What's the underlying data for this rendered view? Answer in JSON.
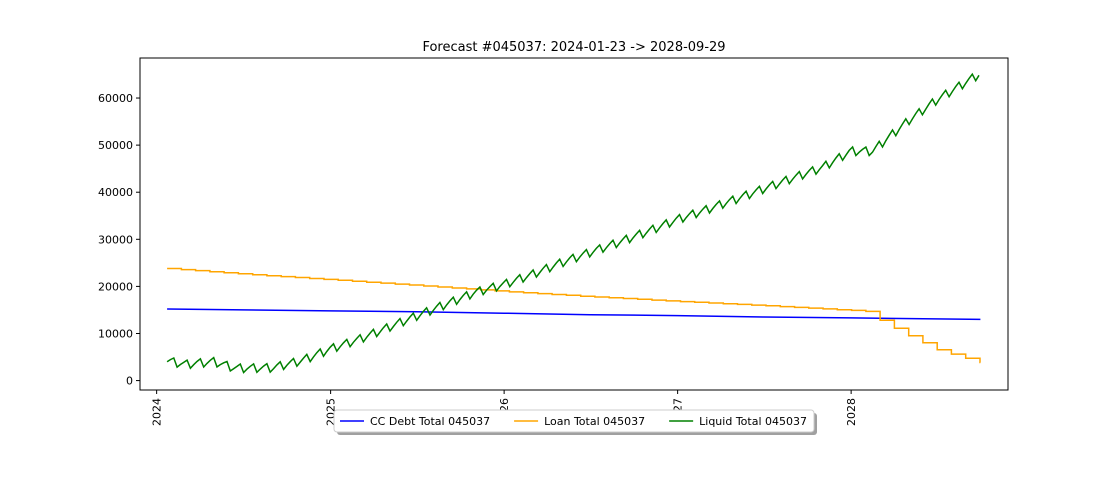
{
  "chart_data": {
    "type": "line",
    "title": "Forecast #045037: 2024-01-23 -> 2028-09-29",
    "xlabel": "",
    "ylabel": "",
    "x_ticks": [
      {
        "date": "2024-01-01",
        "label": "2024"
      },
      {
        "date": "2025-01-01",
        "label": "2025"
      },
      {
        "date": "2026-01-01",
        "label": "2026"
      },
      {
        "date": "2027-01-01",
        "label": "2027"
      },
      {
        "date": "2028-01-01",
        "label": "2028"
      }
    ],
    "y_ticks": [
      0,
      10000,
      20000,
      30000,
      40000,
      50000,
      60000
    ],
    "ylim": [
      -2000,
      68500
    ],
    "xlim": [
      "2023-11-27",
      "2028-11-26"
    ],
    "grid": false,
    "legend_position": "bottom-center",
    "series": [
      {
        "name": "CC Debt Total 045037",
        "color": "#0000ff",
        "style": "smooth",
        "points": [
          {
            "x": "2024-01-23",
            "y": 15200
          },
          {
            "x": "2024-07-01",
            "y": 15000
          },
          {
            "x": "2025-01-01",
            "y": 14800
          },
          {
            "x": "2025-07-01",
            "y": 14600
          },
          {
            "x": "2026-01-01",
            "y": 14300
          },
          {
            "x": "2026-07-01",
            "y": 14000
          },
          {
            "x": "2027-01-01",
            "y": 13800
          },
          {
            "x": "2027-07-01",
            "y": 13500
          },
          {
            "x": "2028-01-01",
            "y": 13300
          },
          {
            "x": "2028-09-29",
            "y": 13000
          }
        ]
      },
      {
        "name": "Loan Total 045037",
        "color": "#ffa500",
        "style": "step",
        "points": [
          {
            "x": "2024-01-23",
            "y": 23800
          },
          {
            "x": "2024-07-01",
            "y": 22600
          },
          {
            "x": "2025-01-01",
            "y": 21400
          },
          {
            "x": "2025-07-01",
            "y": 20200
          },
          {
            "x": "2026-01-01",
            "y": 18900
          },
          {
            "x": "2026-07-01",
            "y": 17800
          },
          {
            "x": "2027-01-01",
            "y": 16800
          },
          {
            "x": "2027-07-01",
            "y": 15900
          },
          {
            "x": "2028-01-01",
            "y": 14900
          },
          {
            "x": "2028-02-01",
            "y": 14700
          },
          {
            "x": "2028-03-15",
            "y": 12000
          },
          {
            "x": "2028-05-01",
            "y": 9500
          },
          {
            "x": "2028-07-01",
            "y": 6500
          },
          {
            "x": "2028-09-29",
            "y": 3800
          }
        ]
      },
      {
        "name": "Liquid Total 045037",
        "color": "#008000",
        "style": "jagged",
        "points": [
          {
            "x": "2024-01-23",
            "y": 4000
          },
          {
            "x": "2024-03-01",
            "y": 3200
          },
          {
            "x": "2024-05-01",
            "y": 3800
          },
          {
            "x": "2024-06-15",
            "y": 2400
          },
          {
            "x": "2024-09-01",
            "y": 2500
          },
          {
            "x": "2024-11-01",
            "y": 4000
          },
          {
            "x": "2025-01-01",
            "y": 6500
          },
          {
            "x": "2025-03-01",
            "y": 8500
          },
          {
            "x": "2025-05-01",
            "y": 11000
          },
          {
            "x": "2025-07-01",
            "y": 13500
          },
          {
            "x": "2025-09-01",
            "y": 16000
          },
          {
            "x": "2025-11-01",
            "y": 18500
          },
          {
            "x": "2026-01-01",
            "y": 20200
          },
          {
            "x": "2026-03-01",
            "y": 22300
          },
          {
            "x": "2026-05-01",
            "y": 24800
          },
          {
            "x": "2026-07-01",
            "y": 27000
          },
          {
            "x": "2026-09-01",
            "y": 29200
          },
          {
            "x": "2026-11-01",
            "y": 31500
          },
          {
            "x": "2027-01-01",
            "y": 34000
          },
          {
            "x": "2027-03-01",
            "y": 36000
          },
          {
            "x": "2027-05-01",
            "y": 38200
          },
          {
            "x": "2027-07-01",
            "y": 40500
          },
          {
            "x": "2027-09-01",
            "y": 42800
          },
          {
            "x": "2027-11-01",
            "y": 45000
          },
          {
            "x": "2028-01-01",
            "y": 48500
          },
          {
            "x": "2028-02-15",
            "y": 48500
          },
          {
            "x": "2028-03-15",
            "y": 51000
          },
          {
            "x": "2028-05-01",
            "y": 55000
          },
          {
            "x": "2028-07-01",
            "y": 59500
          },
          {
            "x": "2028-09-29",
            "y": 65000
          }
        ]
      }
    ]
  }
}
